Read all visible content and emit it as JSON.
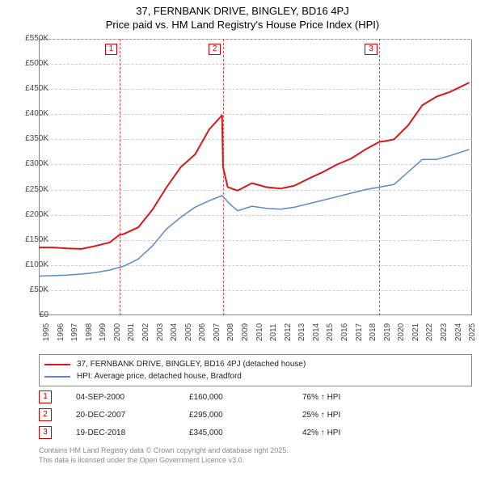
{
  "title": {
    "line1": "37, FERNBANK DRIVE, BINGLEY, BD16 4PJ",
    "line2": "Price paid vs. HM Land Registry's House Price Index (HPI)"
  },
  "chart": {
    "type": "line",
    "xlim": [
      1995,
      2025.5
    ],
    "ylim": [
      0,
      550000
    ],
    "ytick_step": 50000,
    "ytick_prefix": "£",
    "ytick_suffix": "K",
    "yticks_display": [
      "£0",
      "£50K",
      "£100K",
      "£150K",
      "£200K",
      "£250K",
      "£300K",
      "£350K",
      "£400K",
      "£450K",
      "£500K",
      "£550K"
    ],
    "xticks": [
      1995,
      1996,
      1997,
      1998,
      1999,
      2000,
      2001,
      2002,
      2003,
      2004,
      2005,
      2006,
      2007,
      2008,
      2009,
      2010,
      2011,
      2012,
      2013,
      2014,
      2015,
      2016,
      2017,
      2018,
      2019,
      2020,
      2021,
      2022,
      2023,
      2024,
      2025
    ],
    "grid_color": "#cccccc",
    "border_color": "#888888",
    "background_color": "#ffffff",
    "marker_dash_color": "#d04a4a",
    "marker_badge_border": "#cc0000",
    "marker_badge_text": "#cc0000",
    "series": [
      {
        "name": "37, FERNBANK DRIVE, BINGLEY, BD16 4PJ (detached house)",
        "color": "#d31919",
        "line_width": 2,
        "data": [
          [
            1995.0,
            135000
          ],
          [
            1996.0,
            135000
          ],
          [
            1997.0,
            133000
          ],
          [
            1998.0,
            132000
          ],
          [
            1999.0,
            138000
          ],
          [
            2000.0,
            145000
          ],
          [
            2000.67,
            160000
          ],
          [
            2001.0,
            162000
          ],
          [
            2002.0,
            175000
          ],
          [
            2003.0,
            210000
          ],
          [
            2004.0,
            255000
          ],
          [
            2005.0,
            295000
          ],
          [
            2006.0,
            320000
          ],
          [
            2007.0,
            370000
          ],
          [
            2007.9,
            398000
          ],
          [
            2007.97,
            295000
          ],
          [
            2008.3,
            255000
          ],
          [
            2009.0,
            248000
          ],
          [
            2010.0,
            263000
          ],
          [
            2011.0,
            255000
          ],
          [
            2012.0,
            252000
          ],
          [
            2013.0,
            258000
          ],
          [
            2014.0,
            272000
          ],
          [
            2015.0,
            285000
          ],
          [
            2016.0,
            300000
          ],
          [
            2017.0,
            312000
          ],
          [
            2018.0,
            330000
          ],
          [
            2018.97,
            345000
          ],
          [
            2019.5,
            347000
          ],
          [
            2020.0,
            350000
          ],
          [
            2021.0,
            378000
          ],
          [
            2022.0,
            418000
          ],
          [
            2023.0,
            435000
          ],
          [
            2024.0,
            445000
          ],
          [
            2025.3,
            463000
          ]
        ]
      },
      {
        "name": "HPI: Average price, detached house, Bradford",
        "color": "#5a8ac6",
        "line_width": 1.5,
        "data": [
          [
            1995.0,
            78000
          ],
          [
            1996.0,
            79000
          ],
          [
            1997.0,
            80000
          ],
          [
            1998.0,
            82000
          ],
          [
            1999.0,
            85000
          ],
          [
            2000.0,
            90000
          ],
          [
            2001.0,
            98000
          ],
          [
            2002.0,
            112000
          ],
          [
            2003.0,
            138000
          ],
          [
            2004.0,
            172000
          ],
          [
            2005.0,
            195000
          ],
          [
            2006.0,
            215000
          ],
          [
            2007.0,
            228000
          ],
          [
            2007.9,
            238000
          ],
          [
            2008.5,
            220000
          ],
          [
            2009.0,
            208000
          ],
          [
            2010.0,
            217000
          ],
          [
            2011.0,
            213000
          ],
          [
            2012.0,
            211000
          ],
          [
            2013.0,
            215000
          ],
          [
            2014.0,
            222000
          ],
          [
            2015.0,
            229000
          ],
          [
            2016.0,
            236000
          ],
          [
            2017.0,
            243000
          ],
          [
            2018.0,
            250000
          ],
          [
            2019.0,
            255000
          ],
          [
            2020.0,
            260000
          ],
          [
            2021.0,
            285000
          ],
          [
            2022.0,
            310000
          ],
          [
            2023.0,
            310000
          ],
          [
            2024.0,
            318000
          ],
          [
            2025.3,
            330000
          ]
        ]
      }
    ],
    "markers": [
      {
        "n": "1",
        "x": 2000.67
      },
      {
        "n": "2",
        "x": 2007.97
      },
      {
        "n": "3",
        "x": 2018.97
      }
    ]
  },
  "legend": {
    "items": [
      {
        "color": "#d31919",
        "label": "37, FERNBANK DRIVE, BINGLEY, BD16 4PJ (detached house)"
      },
      {
        "color": "#5a8ac6",
        "label": "HPI: Average price, detached house, Bradford"
      }
    ]
  },
  "events": [
    {
      "n": "1",
      "date": "04-SEP-2000",
      "price": "£160,000",
      "hpi": "76% ↑ HPI"
    },
    {
      "n": "2",
      "date": "20-DEC-2007",
      "price": "£295,000",
      "hpi": "25% ↑ HPI"
    },
    {
      "n": "3",
      "date": "19-DEC-2018",
      "price": "£345,000",
      "hpi": "42% ↑ HPI"
    }
  ],
  "attribution": {
    "line1": "Contains HM Land Registry data © Crown copyright and database right 2025.",
    "line2": "This data is licensed under the Open Government Licence v3.0."
  }
}
